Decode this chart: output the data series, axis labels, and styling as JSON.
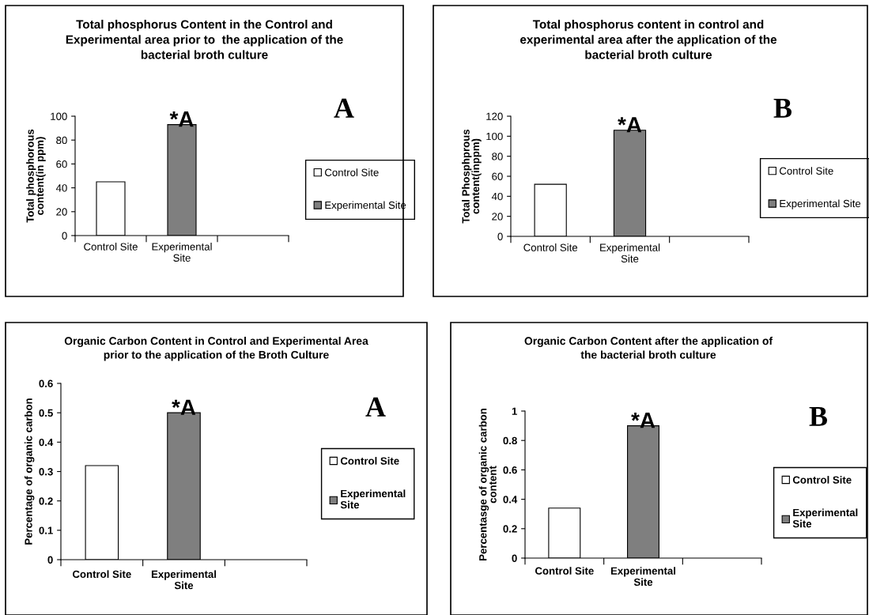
{
  "chart_data": [
    {
      "type": "bar",
      "title": "Total phosphorus Content in the Control and\nExperimental area prior to  the application of the\nbacterial broth culture",
      "ylabel": "Total phosphorous\ncontent(in ppm)",
      "categories": [
        "Control Site",
        "Experimental\nSite",
        null
      ],
      "ylim": [
        0,
        100
      ],
      "yticks": [
        0,
        20,
        40,
        60,
        80,
        100
      ],
      "legend": "right",
      "annotations": [
        "A",
        {
          "text": "*A",
          "x": "Experimental\nSite",
          "y": 93
        }
      ],
      "series": [
        {
          "name": "Control Site",
          "color": "#ffffff",
          "values": [
            45,
            null,
            null
          ]
        },
        {
          "name": "Experimental Site",
          "color": "#7f7f7f",
          "values": [
            null,
            93,
            null
          ]
        }
      ]
    },
    {
      "type": "bar",
      "title": "Total phosphorus content in control and\nexperimental area after the application of the\nbacterial broth culture",
      "ylabel": "Total Phosphprous\ncontent(inppm)",
      "categories": [
        "Control Site",
        "Experimental\nSite",
        null
      ],
      "ylim": [
        0,
        120
      ],
      "yticks": [
        0,
        20,
        40,
        60,
        80,
        100,
        120
      ],
      "legend": "right",
      "annotations": [
        "B",
        {
          "text": "*A",
          "x": "Experimental\nSite",
          "y": 106
        }
      ],
      "series": [
        {
          "name": "Control Site",
          "color": "#ffffff",
          "values": [
            52,
            null,
            null
          ]
        },
        {
          "name": "Experimental Site",
          "color": "#7f7f7f",
          "values": [
            null,
            106,
            null
          ]
        }
      ]
    },
    {
      "type": "bar",
      "title": "Organic Carbon Content in Control and Experimental Area\nprior to the application of the Broth Culture",
      "ylabel": "Percentage of organic carbon",
      "categories": [
        "Control Site",
        "Experimental\nSite",
        null
      ],
      "ylim": [
        0,
        0.6
      ],
      "yticks": [
        0,
        0.1,
        0.2,
        0.3,
        0.4,
        0.5,
        0.6
      ],
      "legend": "right",
      "annotations": [
        "A",
        {
          "text": "*A",
          "x": "Experimental\nSite",
          "y": 0.5
        }
      ],
      "series": [
        {
          "name": "Control Site",
          "color": "#ffffff",
          "values": [
            0.32,
            null,
            null
          ]
        },
        {
          "name": "Experimental\nSite",
          "color": "#7f7f7f",
          "values": [
            null,
            0.5,
            null
          ]
        }
      ]
    },
    {
      "type": "bar",
      "title": "Organic Carbon Content after the application of\nthe bacterial broth culture",
      "ylabel": "Percentasge of organic carbon\ncontent",
      "categories": [
        "Control Site",
        "Experimental\nSite",
        null
      ],
      "ylim": [
        0,
        1
      ],
      "yticks": [
        0,
        0.2,
        0.4,
        0.6,
        0.8,
        1
      ],
      "legend": "right",
      "annotations": [
        "B",
        {
          "text": "*A",
          "x": "Experimental\nSite",
          "y": 0.9
        }
      ],
      "series": [
        {
          "name": "Control Site",
          "color": "#ffffff",
          "values": [
            0.34,
            null,
            null
          ]
        },
        {
          "name": "Experimental\nSite",
          "color": "#7f7f7f",
          "values": [
            null,
            0.9,
            null
          ]
        }
      ]
    }
  ]
}
